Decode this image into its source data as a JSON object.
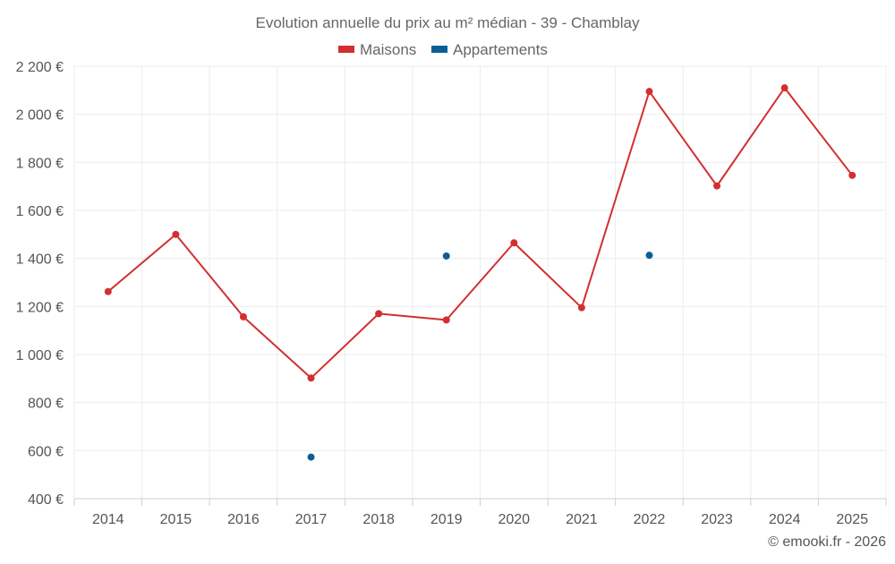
{
  "chart_data": {
    "type": "line",
    "title": "Evolution annuelle du prix au m² médian - 39 - Chamblay",
    "credit": "© emooki.fr - 2026",
    "categories": [
      "2014",
      "2015",
      "2016",
      "2017",
      "2018",
      "2019",
      "2020",
      "2021",
      "2022",
      "2023",
      "2024",
      "2025"
    ],
    "y_ticks": [
      400,
      600,
      800,
      1000,
      1200,
      1400,
      1600,
      1800,
      2000,
      2200
    ],
    "y_tick_labels": [
      "400 €",
      "600 €",
      "800 €",
      "1 000 €",
      "1 200 €",
      "1 400 €",
      "1 600 €",
      "1 800 €",
      "2 000 €",
      "2 200 €"
    ],
    "ylim": [
      400,
      2200
    ],
    "grid": true,
    "legend_position": "top-center",
    "series": [
      {
        "name": "Maisons",
        "color": "#d32f2f",
        "values": [
          1262,
          1500,
          1157,
          902,
          1170,
          1144,
          1465,
          1195,
          2095,
          1702,
          2110,
          1746
        ]
      },
      {
        "name": "Appartements",
        "color": "#0b5f99",
        "values": [
          null,
          null,
          null,
          573,
          null,
          1410,
          null,
          null,
          1413,
          null,
          null,
          null
        ]
      }
    ]
  }
}
